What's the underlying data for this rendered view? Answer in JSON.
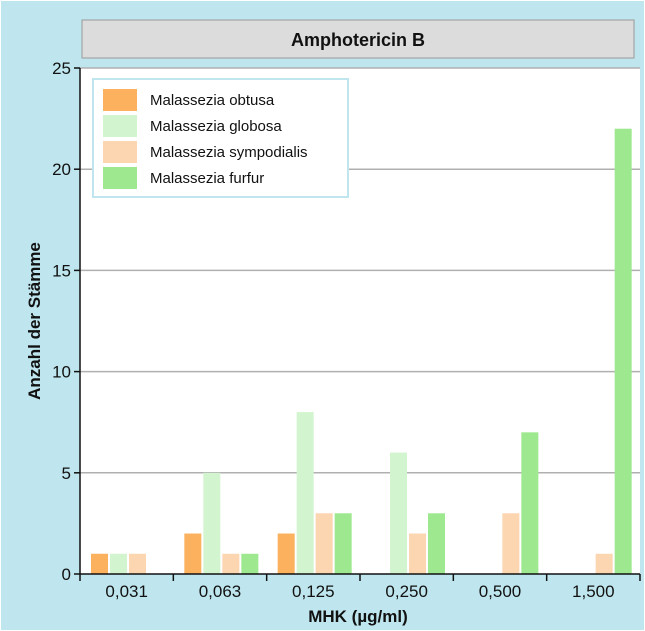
{
  "chart_data": {
    "type": "bar",
    "title": "Amphotericin B",
    "xlabel": "MHK (µg/ml)",
    "ylabel": "Anzahl der Stämme",
    "categories": [
      "0,031",
      "0,063",
      "0,125",
      "0,250",
      "0,500",
      "1,500"
    ],
    "ylim": [
      0,
      25
    ],
    "yticks": [
      0,
      5,
      10,
      15,
      20,
      25
    ],
    "grid": true,
    "legend_position": "top-left",
    "series": [
      {
        "name": "Malassezia obtusa",
        "color": "#fbb15d",
        "values": [
          1,
          2,
          2,
          0,
          0,
          0
        ]
      },
      {
        "name": "Malassezia globosa",
        "color": "#d2f5cf",
        "values": [
          1,
          5,
          8,
          6,
          0,
          0
        ]
      },
      {
        "name": "Malassezia sympodialis",
        "color": "#fcd5b1",
        "values": [
          1,
          1,
          3,
          2,
          3,
          1
        ]
      },
      {
        "name": "Malassezia furfur",
        "color": "#9ee88f",
        "values": [
          0,
          1,
          3,
          3,
          7,
          22
        ]
      }
    ],
    "colors": {
      "frame_background": "#bfe6ee",
      "title_bar": "#dcdcdc",
      "gridline": "#b0b0b0",
      "legend_border": "#bfe6ee"
    }
  }
}
